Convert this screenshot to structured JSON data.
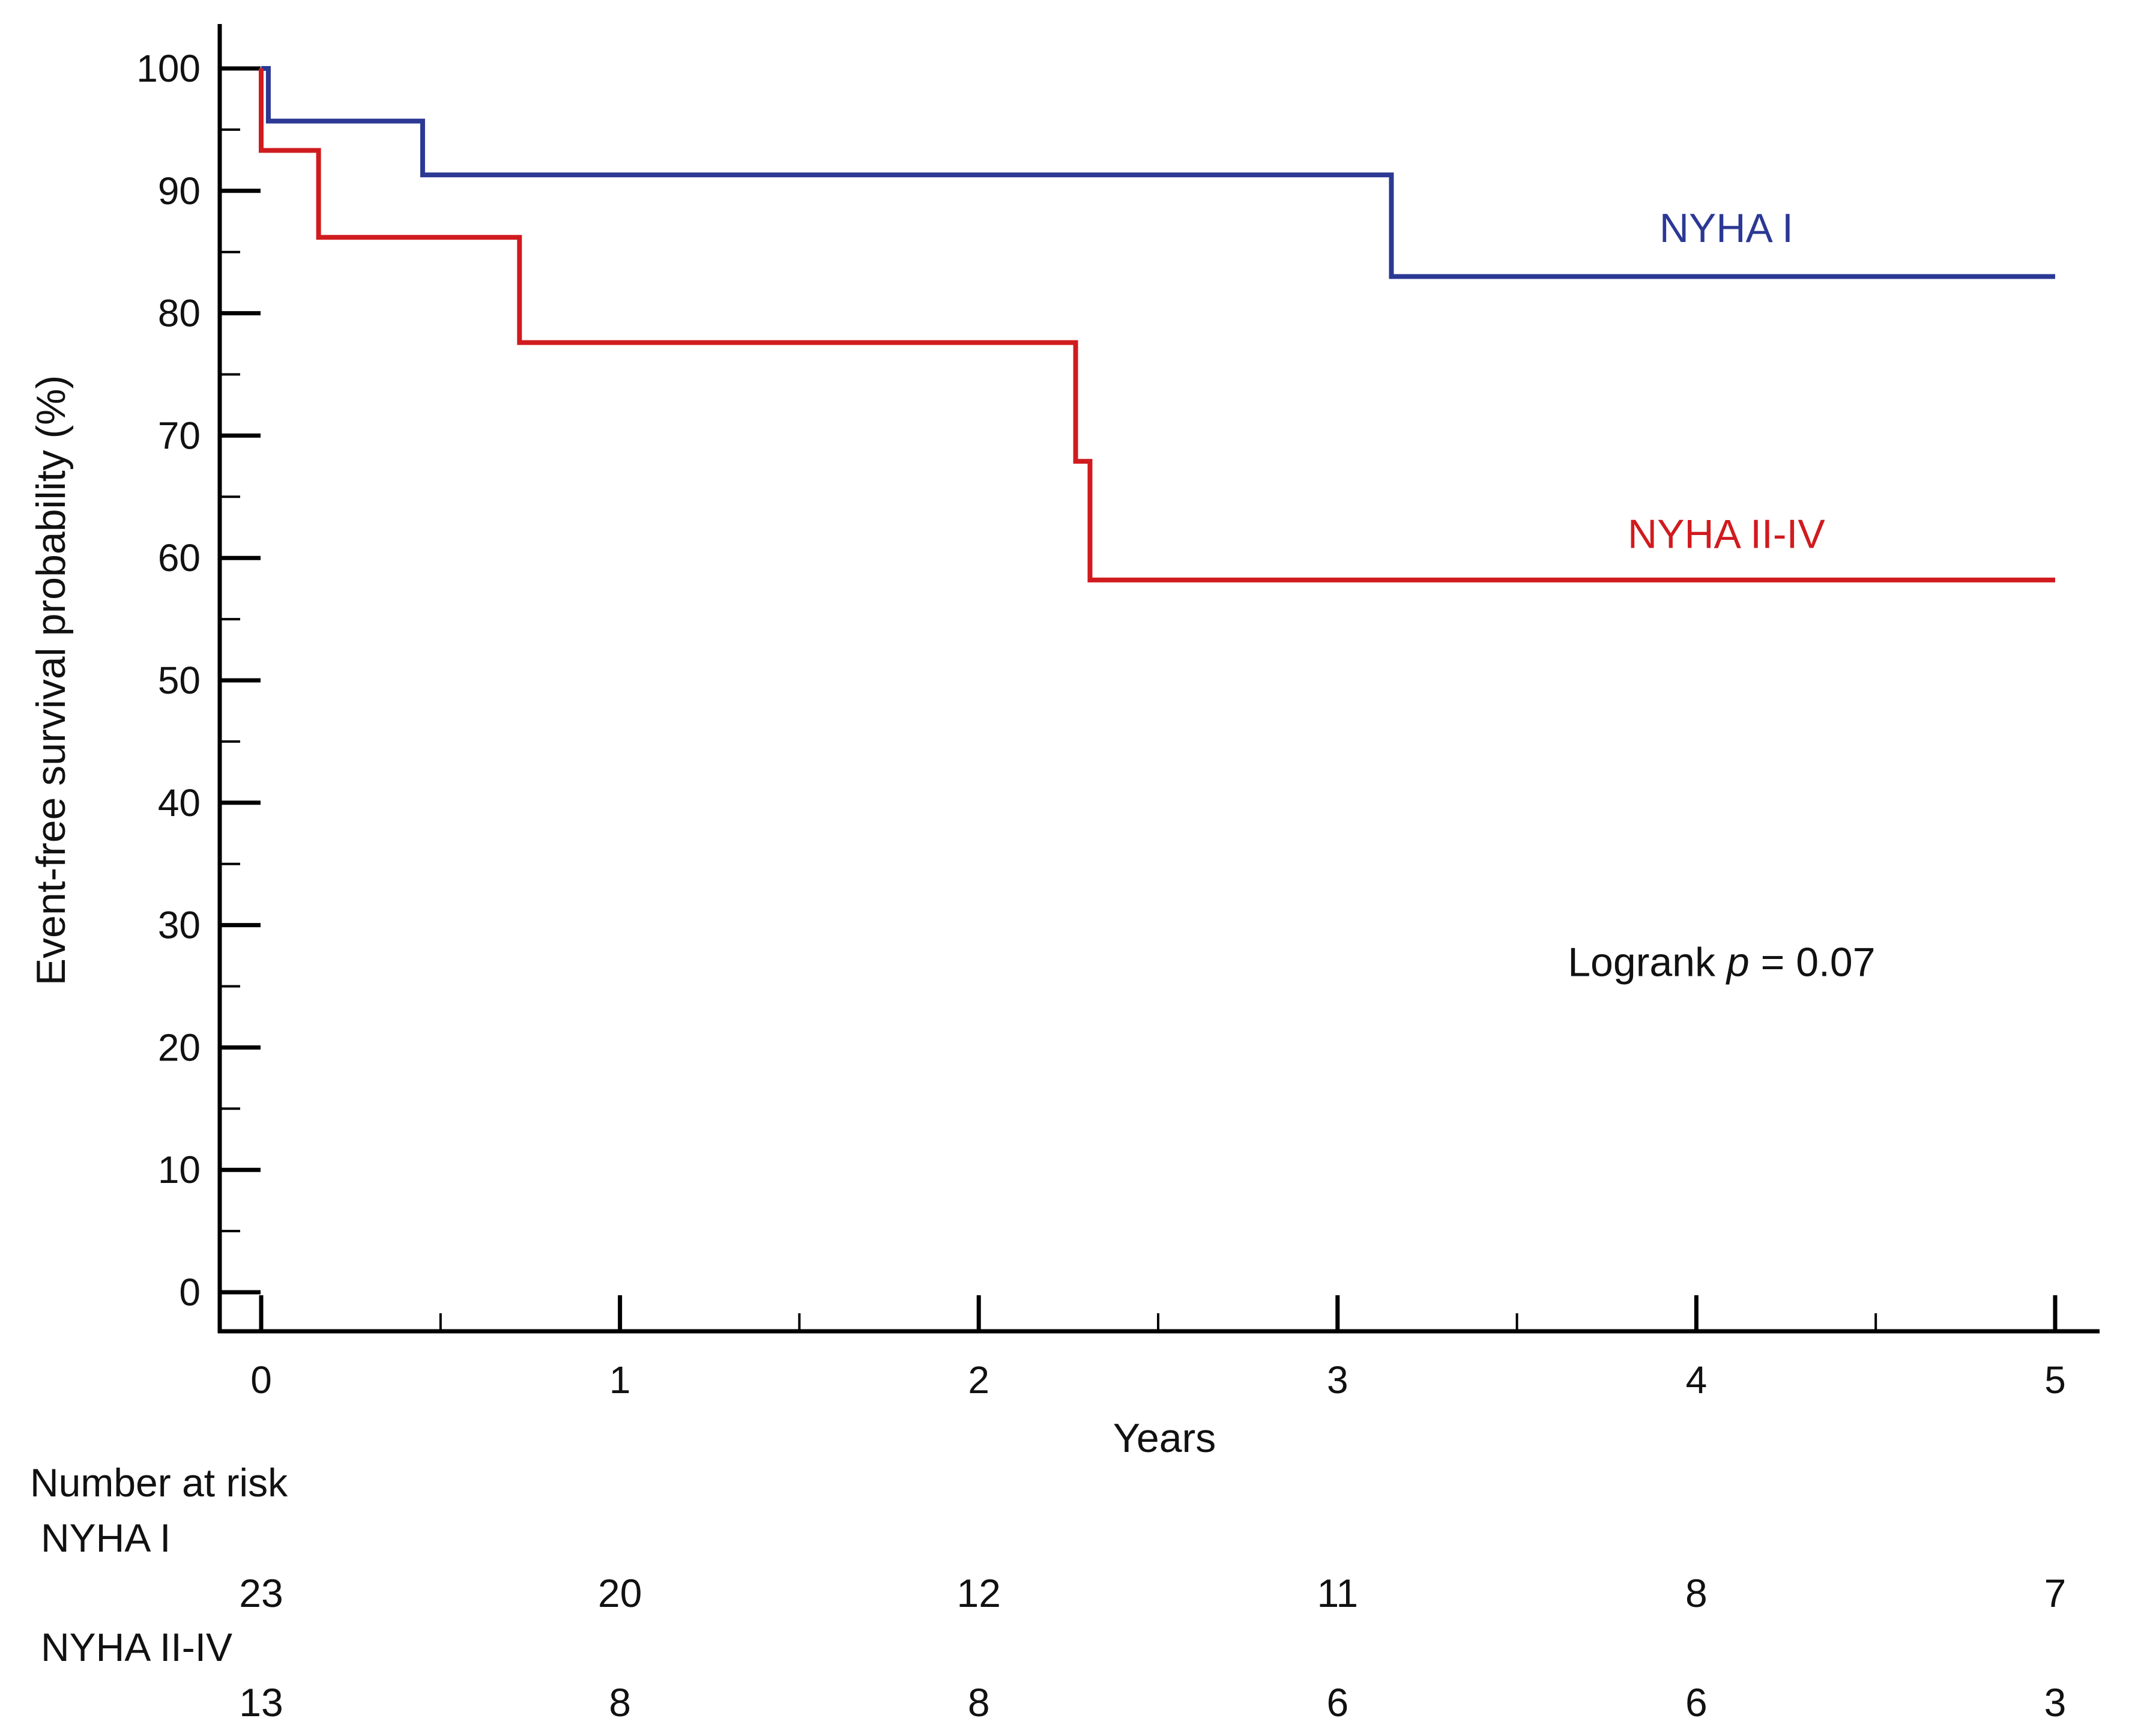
{
  "chart_data": {
    "type": "line",
    "subtype": "kaplan-meier step curve",
    "title": "",
    "xlabel": "Years",
    "ylabel": "Event-free survival probability (%)",
    "xlim": [
      0,
      5
    ],
    "ylim": [
      0,
      100
    ],
    "x_ticks": [
      0,
      1,
      2,
      3,
      4,
      5
    ],
    "x_tick_labels": [
      "0",
      "1",
      "2",
      "3",
      "4",
      "5"
    ],
    "x_minor_step": 0.5,
    "y_ticks": [
      0,
      10,
      20,
      30,
      40,
      50,
      60,
      70,
      80,
      90,
      100
    ],
    "y_tick_labels": [
      "0",
      "10",
      "20",
      "30",
      "40",
      "50",
      "60",
      "70",
      "80",
      "90",
      "100"
    ],
    "y_minor_step": 5,
    "grid": false,
    "series": [
      {
        "name": "NYHA I",
        "color": "#2b3894",
        "label_at": [
          4.0,
          87.0
        ],
        "steps": [
          [
            0.0,
            100
          ],
          [
            0.02,
            95.7
          ],
          [
            0.45,
            91.3
          ],
          [
            3.15,
            83.0
          ],
          [
            5.0,
            83.0
          ]
        ]
      },
      {
        "name": "NYHA II-IV",
        "color": "#d01b1f",
        "label_at": [
          4.0,
          62.0
        ],
        "steps": [
          [
            0.0,
            100
          ],
          [
            0.0,
            93.3
          ],
          [
            0.16,
            86.2
          ],
          [
            0.72,
            77.6
          ],
          [
            2.27,
            67.9
          ],
          [
            2.31,
            58.2
          ],
          [
            5.0,
            58.2
          ]
        ]
      }
    ],
    "annotation": {
      "prefix": "Logrank ",
      "italic": "p",
      "suffix": " = 0.07",
      "at": [
        4.0,
        27.0
      ]
    },
    "risk_table": {
      "heading": "Number at risk",
      "times": [
        0,
        1,
        2,
        3,
        4,
        5
      ],
      "rows": [
        {
          "label": "NYHA I",
          "values": [
            "23",
            "20",
            "12",
            "11",
            "8",
            "7"
          ]
        },
        {
          "label": "NYHA II-IV",
          "values": [
            "13",
            "8",
            "8",
            "6",
            "6",
            "3"
          ]
        }
      ]
    }
  }
}
